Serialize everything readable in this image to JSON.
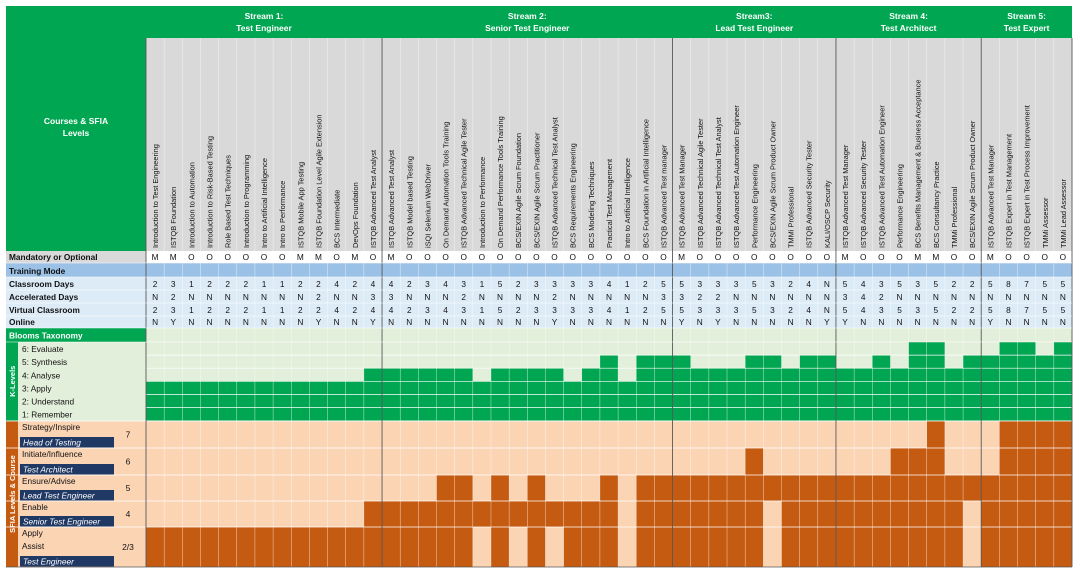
{
  "corner": {
    "line1": "Courses & SFIA",
    "line2": "Levels"
  },
  "streams": [
    {
      "title": "Stream 1:",
      "subtitle": "Test Engineer"
    },
    {
      "title": "Stream 2:",
      "subtitle": "Senior Test Engineer"
    },
    {
      "title": "Stream3:",
      "subtitle": "Lead Test Engineer"
    },
    {
      "title": "Stream 4:",
      "subtitle": "Test Architect"
    },
    {
      "title": "Stream 5:",
      "subtitle": "Test Expert"
    }
  ],
  "courses": [
    {
      "name": "Introduction to Test Engineering",
      "mandatory": "M",
      "classroom": "2",
      "accelerated": "N",
      "virtual": "2",
      "online": "N",
      "k": 3,
      "sfia": [
        0,
        0,
        0,
        0,
        1
      ]
    },
    {
      "name": "ISTQB Foundation",
      "mandatory": "M",
      "classroom": "3",
      "accelerated": "2",
      "virtual": "3",
      "online": "Y",
      "k": 3,
      "sfia": [
        0,
        0,
        0,
        0,
        1
      ]
    },
    {
      "name": "Introduction to Automation",
      "mandatory": "O",
      "classroom": "1",
      "accelerated": "N",
      "virtual": "1",
      "online": "N",
      "k": 3,
      "sfia": [
        0,
        0,
        0,
        0,
        1
      ]
    },
    {
      "name": "Introduction to Risk-Based Testing",
      "mandatory": "O",
      "classroom": "2",
      "accelerated": "N",
      "virtual": "2",
      "online": "N",
      "k": 3,
      "sfia": [
        0,
        0,
        0,
        0,
        1
      ]
    },
    {
      "name": "Role Based Test Techniques",
      "mandatory": "O",
      "classroom": "2",
      "accelerated": "N",
      "virtual": "2",
      "online": "N",
      "k": 3,
      "sfia": [
        0,
        0,
        0,
        0,
        1
      ]
    },
    {
      "name": "Introduction to Programming",
      "mandatory": "O",
      "classroom": "2",
      "accelerated": "N",
      "virtual": "2",
      "online": "N",
      "k": 3,
      "sfia": [
        0,
        0,
        0,
        0,
        1
      ]
    },
    {
      "name": "Intro to Artificial Intelligence",
      "mandatory": "O",
      "classroom": "1",
      "accelerated": "N",
      "virtual": "1",
      "online": "N",
      "k": 3,
      "sfia": [
        0,
        0,
        0,
        0,
        1
      ]
    },
    {
      "name": "Intro to Performance",
      "mandatory": "O",
      "classroom": "1",
      "accelerated": "N",
      "virtual": "1",
      "online": "N",
      "k": 3,
      "sfia": [
        0,
        0,
        0,
        0,
        1
      ]
    },
    {
      "name": "ISTQB Mobile App Testing",
      "mandatory": "M",
      "classroom": "2",
      "accelerated": "N",
      "virtual": "2",
      "online": "N",
      "k": 3,
      "sfia": [
        0,
        0,
        0,
        0,
        1
      ]
    },
    {
      "name": "ISTQB Foundation Level Agile Extension",
      "mandatory": "M",
      "classroom": "2",
      "accelerated": "2",
      "virtual": "2",
      "online": "Y",
      "k": 3,
      "sfia": [
        0,
        0,
        0,
        0,
        1
      ]
    },
    {
      "name": "BCS Intermediate",
      "mandatory": "O",
      "classroom": "4",
      "accelerated": "N",
      "virtual": "4",
      "online": "N",
      "k": 3,
      "sfia": [
        0,
        0,
        0,
        0,
        1
      ]
    },
    {
      "name": "DevOps Foundation",
      "mandatory": "M",
      "classroom": "2",
      "accelerated": "N",
      "virtual": "2",
      "online": "N",
      "k": 3,
      "sfia": [
        0,
        0,
        0,
        0,
        1
      ]
    },
    {
      "name": "ISTQB Advanced Test Analyst",
      "mandatory": "O",
      "classroom": "4",
      "accelerated": "3",
      "virtual": "4",
      "online": "Y",
      "k": 4,
      "sfia": [
        0,
        0,
        0,
        1,
        1
      ]
    },
    {
      "name": "ISTQB Advanced Test Analyst",
      "mandatory": "M",
      "classroom": "4",
      "accelerated": "3",
      "virtual": "4",
      "online": "N",
      "k": 4,
      "sfia": [
        0,
        0,
        0,
        1,
        1
      ]
    },
    {
      "name": "ISTQB Model based Testing",
      "mandatory": "O",
      "classroom": "2",
      "accelerated": "N",
      "virtual": "2",
      "online": "N",
      "k": 4,
      "sfia": [
        0,
        0,
        0,
        1,
        1
      ]
    },
    {
      "name": "iSQI Selenium WebDriver",
      "mandatory": "O",
      "classroom": "3",
      "accelerated": "N",
      "virtual": "3",
      "online": "N",
      "k": 4,
      "sfia": [
        0,
        0,
        0,
        1,
        1
      ]
    },
    {
      "name": "On Demand Automation Tools Training",
      "mandatory": "O",
      "classroom": "4",
      "accelerated": "N",
      "virtual": "4",
      "online": "N",
      "k": 4,
      "sfia": [
        0,
        0,
        1,
        1,
        1
      ]
    },
    {
      "name": "ISTQB Advanced Technical Agile Tester",
      "mandatory": "O",
      "classroom": "3",
      "accelerated": "2",
      "virtual": "3",
      "online": "N",
      "k": 4,
      "sfia": [
        0,
        0,
        1,
        1,
        1
      ]
    },
    {
      "name": "Introduction to Performance",
      "mandatory": "O",
      "classroom": "1",
      "accelerated": "N",
      "virtual": "1",
      "online": "N",
      "k": 3,
      "sfia": [
        0,
        0,
        0,
        1,
        0
      ]
    },
    {
      "name": "On Demand Performance Tools Training",
      "mandatory": "O",
      "classroom": "5",
      "accelerated": "N",
      "virtual": "5",
      "online": "N",
      "k": 4,
      "sfia": [
        0,
        0,
        1,
        1,
        1
      ]
    },
    {
      "name": "BCS/EXIN Agile Scrum Foundation",
      "mandatory": "O",
      "classroom": "2",
      "accelerated": "N",
      "virtual": "2",
      "online": "N",
      "k": 4,
      "sfia": [
        0,
        0,
        0,
        1,
        0
      ]
    },
    {
      "name": "BCS/EXIN Agile Scrum Practitioner",
      "mandatory": "O",
      "classroom": "3",
      "accelerated": "N",
      "virtual": "3",
      "online": "N",
      "k": 4,
      "sfia": [
        0,
        0,
        1,
        1,
        1
      ]
    },
    {
      "name": "ISTQB Advanced Technical Test Analyst",
      "mandatory": "O",
      "classroom": "3",
      "accelerated": "2",
      "virtual": "3",
      "online": "Y",
      "k": 4,
      "sfia": [
        0,
        0,
        0,
        1,
        0
      ]
    },
    {
      "name": "BCS Requirements Engineering",
      "mandatory": "O",
      "classroom": "3",
      "accelerated": "N",
      "virtual": "3",
      "online": "N",
      "k": 3,
      "sfia": [
        0,
        0,
        0,
        1,
        1
      ]
    },
    {
      "name": "BCS Modeling Techniques",
      "mandatory": "O",
      "classroom": "3",
      "accelerated": "N",
      "virtual": "3",
      "online": "N",
      "k": 4,
      "sfia": [
        0,
        0,
        0,
        1,
        1
      ]
    },
    {
      "name": "Practical Test Management",
      "mandatory": "O",
      "classroom": "4",
      "accelerated": "N",
      "virtual": "4",
      "online": "N",
      "k": 5,
      "sfia": [
        0,
        0,
        1,
        1,
        1
      ]
    },
    {
      "name": "Intro to Artificial Intelligence",
      "mandatory": "O",
      "classroom": "1",
      "accelerated": "N",
      "virtual": "1",
      "online": "N",
      "k": 3,
      "sfia": [
        0,
        0,
        0,
        0,
        0
      ]
    },
    {
      "name": "BCS Foundation in Artificial Intelligence",
      "mandatory": "O",
      "classroom": "2",
      "accelerated": "N",
      "virtual": "2",
      "online": "N",
      "k": 5,
      "sfia": [
        0,
        0,
        1,
        1,
        1
      ]
    },
    {
      "name": "ISTQB Advanced Test manager",
      "mandatory": "O",
      "classroom": "5",
      "accelerated": "3",
      "virtual": "5",
      "online": "N",
      "k": 5,
      "sfia": [
        0,
        0,
        1,
        1,
        1
      ]
    },
    {
      "name": "ISTQB Advanced Test Manager",
      "mandatory": "M",
      "classroom": "5",
      "accelerated": "3",
      "virtual": "5",
      "online": "Y",
      "k": 5,
      "sfia": [
        0,
        0,
        1,
        1,
        1
      ]
    },
    {
      "name": "ISTQB Advanced Technical Agile Tester",
      "mandatory": "O",
      "classroom": "3",
      "accelerated": "2",
      "virtual": "3",
      "online": "N",
      "k": 4,
      "sfia": [
        0,
        0,
        1,
        1,
        1
      ]
    },
    {
      "name": "ISTQB Advanced Technical Test Analyst",
      "mandatory": "O",
      "classroom": "3",
      "accelerated": "2",
      "virtual": "3",
      "online": "Y",
      "k": 4,
      "sfia": [
        0,
        0,
        1,
        1,
        1
      ]
    },
    {
      "name": "ISTQB Advanced Test Automation Engineer",
      "mandatory": "O",
      "classroom": "3",
      "accelerated": "N",
      "virtual": "3",
      "online": "N",
      "k": 4,
      "sfia": [
        0,
        0,
        1,
        1,
        1
      ]
    },
    {
      "name": "Performance Engineering",
      "mandatory": "O",
      "classroom": "5",
      "accelerated": "N",
      "virtual": "5",
      "online": "N",
      "k": 5,
      "sfia": [
        0,
        1,
        1,
        1,
        1
      ]
    },
    {
      "name": "BCS/EXIN Agile Scrum Product Owner",
      "mandatory": "O",
      "classroom": "3",
      "accelerated": "N",
      "virtual": "3",
      "online": "N",
      "k": 5,
      "sfia": [
        0,
        0,
        1,
        0,
        0
      ]
    },
    {
      "name": "TMMi Professional",
      "mandatory": "O",
      "classroom": "2",
      "accelerated": "N",
      "virtual": "2",
      "online": "N",
      "k": 4,
      "sfia": [
        0,
        0,
        1,
        1,
        1
      ]
    },
    {
      "name": "ISTQB Advanced Security Tester",
      "mandatory": "O",
      "classroom": "4",
      "accelerated": "N",
      "virtual": "4",
      "online": "N",
      "k": 5,
      "sfia": [
        0,
        0,
        1,
        1,
        1
      ]
    },
    {
      "name": "KALI/OSCP Security",
      "mandatory": "O",
      "classroom": "N",
      "accelerated": "N",
      "virtual": "N",
      "online": "Y",
      "k": 5,
      "sfia": [
        0,
        0,
        1,
        1,
        1
      ]
    },
    {
      "name": "ISTQB Advanced Test Manager",
      "mandatory": "M",
      "classroom": "5",
      "accelerated": "3",
      "virtual": "5",
      "online": "Y",
      "k": 4,
      "sfia": [
        0,
        0,
        1,
        1,
        1
      ]
    },
    {
      "name": "ISTQB Advanced Security Tester",
      "mandatory": "O",
      "classroom": "4",
      "accelerated": "4",
      "virtual": "4",
      "online": "N",
      "k": 4,
      "sfia": [
        0,
        0,
        1,
        1,
        1
      ]
    },
    {
      "name": "ISTQB Advanced Test Automation Engineer",
      "mandatory": "O",
      "classroom": "3",
      "accelerated": "2",
      "virtual": "3",
      "online": "N",
      "k": 5,
      "sfia": [
        0,
        0,
        1,
        1,
        1
      ]
    },
    {
      "name": "Performance Engineering",
      "mandatory": "O",
      "classroom": "5",
      "accelerated": "N",
      "virtual": "5",
      "online": "N",
      "k": 4,
      "sfia": [
        0,
        1,
        1,
        1,
        1
      ]
    },
    {
      "name": "BCS Benefits Management & Business Acceptance",
      "mandatory": "M",
      "classroom": "3",
      "accelerated": "N",
      "virtual": "3",
      "online": "N",
      "k": 6,
      "sfia": [
        0,
        1,
        1,
        1,
        1
      ]
    },
    {
      "name": "BCS Consultancy Practice",
      "mandatory": "M",
      "classroom": "5",
      "accelerated": "N",
      "virtual": "5",
      "online": "N",
      "k": 6,
      "sfia": [
        1,
        1,
        1,
        1,
        1
      ]
    },
    {
      "name": "TMMi Professional",
      "mandatory": "O",
      "classroom": "2",
      "accelerated": "N",
      "virtual": "2",
      "online": "N",
      "k": 4,
      "sfia": [
        0,
        0,
        1,
        1,
        1
      ]
    },
    {
      "name": "BCS/EXIN Agile Scrum Product Owner",
      "mandatory": "O",
      "classroom": "2",
      "accelerated": "N",
      "virtual": "2",
      "online": "N",
      "k": 5,
      "sfia": [
        0,
        0,
        1,
        0,
        0
      ]
    },
    {
      "name": "ISTQB Advanced Test Manager",
      "mandatory": "M",
      "classroom": "5",
      "accelerated": "N",
      "virtual": "5",
      "online": "Y",
      "k": 5,
      "sfia": [
        0,
        0,
        1,
        1,
        1
      ]
    },
    {
      "name": "ISTQB Expert in Test Management",
      "mandatory": "O",
      "classroom": "8",
      "accelerated": "N",
      "virtual": "8",
      "online": "N",
      "k": 6,
      "sfia": [
        1,
        1,
        1,
        1,
        1
      ]
    },
    {
      "name": "ISTQB Expert in Test Process Improvement",
      "mandatory": "O",
      "classroom": "7",
      "accelerated": "N",
      "virtual": "7",
      "online": "N",
      "k": 6,
      "sfia": [
        1,
        1,
        1,
        1,
        1
      ]
    },
    {
      "name": "TMMi Assessor",
      "mandatory": "O",
      "classroom": "5",
      "accelerated": "N",
      "virtual": "5",
      "online": "N",
      "k": 5,
      "sfia": [
        1,
        1,
        1,
        1,
        1
      ]
    },
    {
      "name": "TMMi Lead Assessor",
      "mandatory": "O",
      "classroom": "5",
      "accelerated": "N",
      "virtual": "5",
      "online": "N",
      "k": 6,
      "sfia": [
        1,
        1,
        1,
        1,
        1
      ]
    }
  ],
  "rows": {
    "mandatory": "Mandatory or Optional",
    "training_mode": "Training Mode",
    "classroom": "Classroom Days",
    "accelerated": "Accelerated Days",
    "virtual": "Virtual Classroom",
    "online": "Online",
    "blooms": "Blooms Taxonomy"
  },
  "k_levels_label": "K-Levels",
  "k_levels": [
    "6: Evaluate",
    "5: Synthesis",
    "4: Analyse",
    "3: Apply",
    "2: Understand",
    "1: Remember"
  ],
  "sfia_side_label": "SFIA Levels & Course",
  "sfia_bands": [
    {
      "number": "7",
      "level": "Strategy/Inspire",
      "role": "Head of Testing"
    },
    {
      "number": "6",
      "level": "Initiate/Influence",
      "role": "Test Architect"
    },
    {
      "number": "5",
      "level": "Ensure/Advise",
      "role": "Lead Test Engineer"
    },
    {
      "number": "4",
      "level": "Enable",
      "role": "Senior Test Engineer"
    },
    {
      "number": "2/3",
      "level": "Apply",
      "level2": "Assist",
      "role": "Test Engineer"
    }
  ],
  "colors": {
    "header_green": "#00a651",
    "course_header_grey": "#d9d9d9",
    "info_blue": "#ddebf7",
    "training_mode_blue": "#9bc2e6",
    "k_bg": "#e2efda",
    "k_fill": "#00a651",
    "sfia_bg": "#fbd4b4",
    "sfia_fill": "#c55a11",
    "sfia_label": "#f4b183",
    "role_navy": "#1f3864",
    "divider": "#595959"
  }
}
